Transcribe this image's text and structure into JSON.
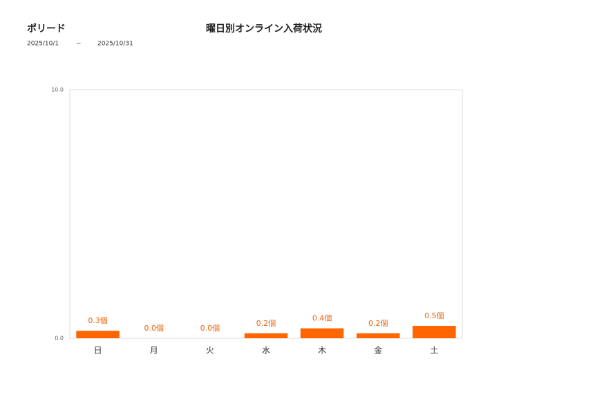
{
  "chart_data": {
    "type": "bar",
    "store": "ポリード",
    "period": [
      "2025/10/1",
      "~",
      "2025/10/31"
    ],
    "title": "曜日別オンライン入荷状況",
    "categories": [
      "日",
      "月",
      "火",
      "水",
      "木",
      "金",
      "土"
    ],
    "values": [
      0.3,
      0.0,
      0.0,
      0.2,
      0.4,
      0.2,
      0.5
    ],
    "value_labels": [
      "0.3個",
      "0.0個",
      "0.0個",
      "0.2個",
      "0.4個",
      "0.2個",
      "0.5個"
    ],
    "color": "#ff6600",
    "ylim": [
      0,
      10
    ],
    "yticks": [
      {
        "value": 0,
        "label": "0.0"
      },
      {
        "value": 10,
        "label": "10.0"
      }
    ],
    "grid": false
  }
}
